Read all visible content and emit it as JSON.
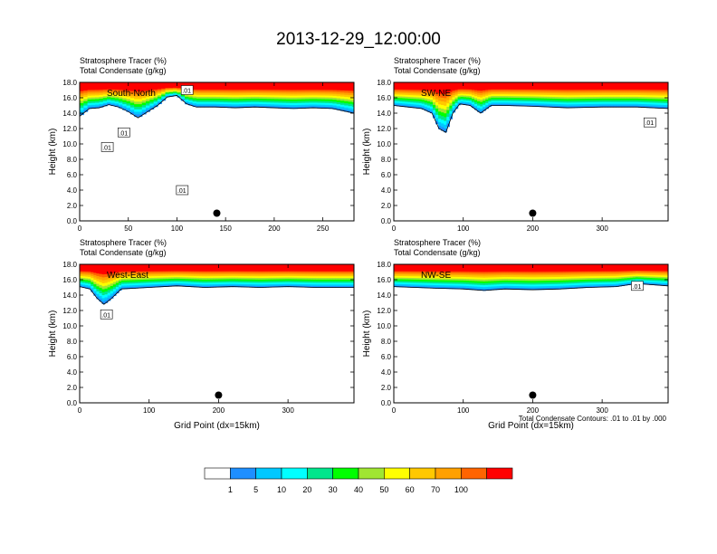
{
  "title": "2013-12-29_12:00:00",
  "footnote": "Total Condensate Contours: .01 to .01 by .000",
  "colorbar": {
    "labels": [
      "1",
      "5",
      "10",
      "20",
      "30",
      "40",
      "50",
      "60",
      "70",
      "100"
    ],
    "colors": [
      "#ffffff",
      "#1e8fff",
      "#00c8ff",
      "#00ffff",
      "#00e68c",
      "#00ff00",
      "#a0e632",
      "#ffff00",
      "#ffc800",
      "#ffa000",
      "#ff6400",
      "#ff0000"
    ]
  },
  "chart_data": [
    {
      "type": "heatmap",
      "panel": "South-North",
      "title_lines": [
        "Stratosphere Tracer   (%)",
        "Total Condensate   (g/kg)"
      ],
      "ylabel": "Height (km)",
      "xlabel": "",
      "xlim": [
        0,
        282
      ],
      "ylim": [
        0,
        18
      ],
      "x_ticks": [
        "0",
        "50",
        "100",
        "150",
        "200",
        "250"
      ],
      "x_tick_values": [
        0,
        50,
        100,
        150,
        200,
        250
      ],
      "y_ticks": [
        "0.0",
        "2.0",
        "4.0",
        "6.0",
        "8.0",
        "10.0",
        "12.0",
        "14.0",
        "16.0",
        "18.0"
      ],
      "tracer_boundary_km": [
        [
          0,
          13.6
        ],
        [
          10,
          14.6
        ],
        [
          20,
          14.7
        ],
        [
          30,
          15.1
        ],
        [
          40,
          14.8
        ],
        [
          50,
          14.2
        ],
        [
          60,
          13.4
        ],
        [
          70,
          14.2
        ],
        [
          80,
          15.0
        ],
        [
          90,
          16.1
        ],
        [
          100,
          16.3
        ],
        [
          110,
          15.2
        ],
        [
          120,
          14.8
        ],
        [
          140,
          14.8
        ],
        [
          160,
          14.7
        ],
        [
          180,
          14.8
        ],
        [
          200,
          14.7
        ],
        [
          220,
          14.6
        ],
        [
          240,
          14.7
        ],
        [
          260,
          14.6
        ],
        [
          282,
          14.0
        ]
      ],
      "contour_labels": [
        [
          45,
          11.5,
          ".01"
        ],
        [
          28,
          9.6,
          ".01"
        ],
        [
          105,
          4.0,
          ".01"
        ],
        [
          110,
          17.0,
          ".01"
        ]
      ],
      "marker": [
        141,
        1.0
      ]
    },
    {
      "type": "heatmap",
      "panel": "SW-NE",
      "title_lines": [
        "Stratosphere Tracer   (%)",
        "Total Condensate   (g/kg)"
      ],
      "ylabel": "Height (km)",
      "xlabel": "",
      "xlim": [
        0,
        395
      ],
      "ylim": [
        0,
        18
      ],
      "x_ticks": [
        "0",
        "100",
        "200",
        "300"
      ],
      "x_tick_values": [
        0,
        100,
        200,
        300
      ],
      "y_ticks": [
        "0.0",
        "2.0",
        "4.0",
        "6.0",
        "8.0",
        "10.0",
        "12.0",
        "14.0",
        "16.0",
        "18.0"
      ],
      "tracer_boundary_km": [
        [
          0,
          15.0
        ],
        [
          20,
          14.8
        ],
        [
          40,
          14.6
        ],
        [
          55,
          14.0
        ],
        [
          65,
          12.0
        ],
        [
          75,
          11.5
        ],
        [
          85,
          14.0
        ],
        [
          95,
          15.2
        ],
        [
          110,
          15.0
        ],
        [
          125,
          14.0
        ],
        [
          140,
          15.0
        ],
        [
          160,
          15.0
        ],
        [
          200,
          14.9
        ],
        [
          250,
          14.7
        ],
        [
          300,
          14.8
        ],
        [
          350,
          14.8
        ],
        [
          395,
          14.6
        ]
      ],
      "contour_labels": [
        [
          368,
          12.8,
          ".01"
        ]
      ],
      "marker": [
        200,
        1.0
      ]
    },
    {
      "type": "heatmap",
      "panel": "West-East",
      "title_lines": [
        "Stratosphere Tracer   (%)",
        "Total Condensate   (g/kg)"
      ],
      "ylabel": "Height (km)",
      "xlabel": "Grid Point (dx=15km)",
      "xlim": [
        0,
        395
      ],
      "ylim": [
        0,
        18
      ],
      "x_ticks": [
        "0",
        "100",
        "200",
        "300"
      ],
      "x_tick_values": [
        0,
        100,
        200,
        300
      ],
      "y_ticks": [
        "0.0",
        "2.0",
        "4.0",
        "6.0",
        "8.0",
        "10.0",
        "12.0",
        "14.0",
        "16.0",
        "18.0"
      ],
      "tracer_boundary_km": [
        [
          0,
          15.1
        ],
        [
          15,
          14.8
        ],
        [
          25,
          13.6
        ],
        [
          35,
          12.8
        ],
        [
          45,
          13.5
        ],
        [
          60,
          14.8
        ],
        [
          80,
          14.9
        ],
        [
          100,
          15.0
        ],
        [
          140,
          15.2
        ],
        [
          180,
          15.0
        ],
        [
          220,
          15.1
        ],
        [
          260,
          15.0
        ],
        [
          300,
          15.1
        ],
        [
          340,
          15.0
        ],
        [
          395,
          15.0
        ]
      ],
      "contour_labels": [
        [
          38,
          11.5,
          ".01"
        ]
      ],
      "marker": [
        200,
        1.0
      ]
    },
    {
      "type": "heatmap",
      "panel": "NW-SE",
      "title_lines": [
        "Stratosphere Tracer   (%)",
        "Total Condensate   (g/kg)"
      ],
      "ylabel": "Height (km)",
      "xlabel": "Grid Point (dx=15km)",
      "xlim": [
        0,
        395
      ],
      "ylim": [
        0,
        18
      ],
      "x_ticks": [
        "0",
        "100",
        "200",
        "300"
      ],
      "x_tick_values": [
        0,
        100,
        200,
        300
      ],
      "y_ticks": [
        "0.0",
        "2.0",
        "4.0",
        "6.0",
        "8.0",
        "10.0",
        "12.0",
        "14.0",
        "16.0",
        "18.0"
      ],
      "tracer_boundary_km": [
        [
          0,
          15.1
        ],
        [
          30,
          15.0
        ],
        [
          60,
          14.9
        ],
        [
          100,
          14.8
        ],
        [
          130,
          14.6
        ],
        [
          160,
          14.8
        ],
        [
          200,
          14.7
        ],
        [
          240,
          14.8
        ],
        [
          280,
          15.0
        ],
        [
          320,
          15.1
        ],
        [
          350,
          15.5
        ],
        [
          395,
          15.2
        ]
      ],
      "contour_labels": [
        [
          350,
          15.2,
          ".01"
        ]
      ],
      "marker": [
        200,
        1.0
      ]
    }
  ]
}
